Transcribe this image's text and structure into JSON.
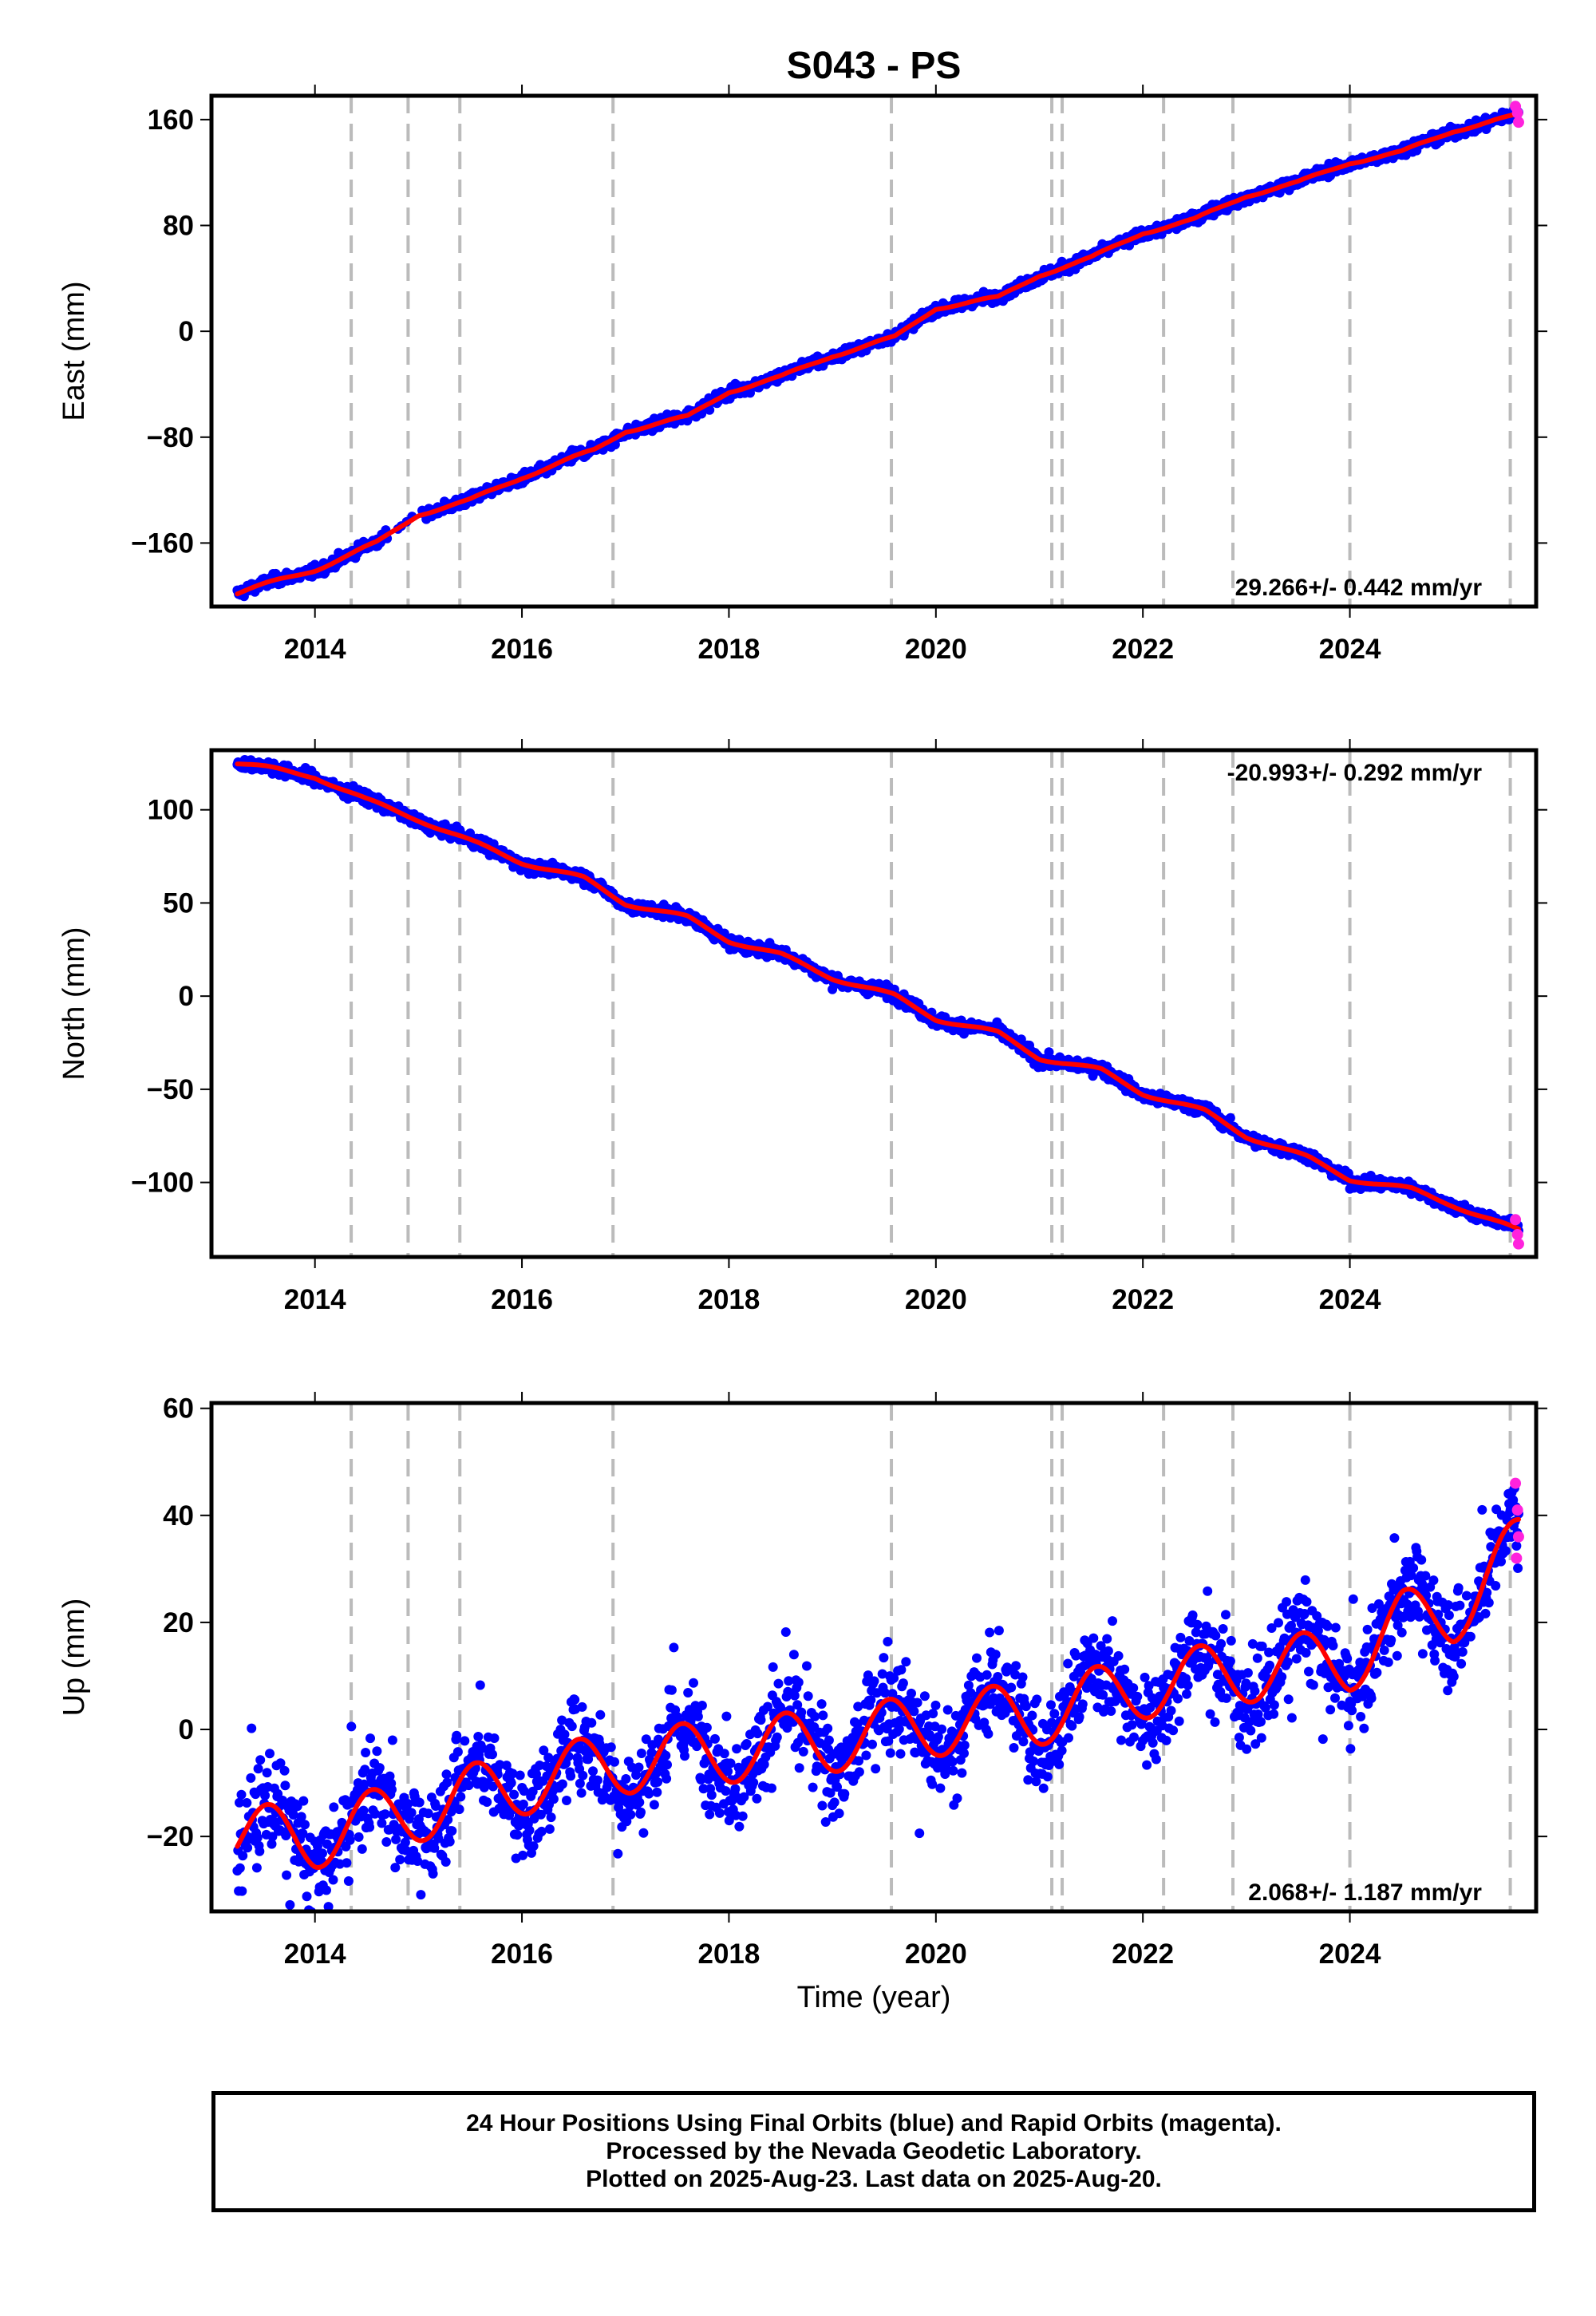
{
  "title": "S043 - PS",
  "xlabel": "Time (year)",
  "footer": {
    "line1": "24 Hour Positions Using Final Orbits (blue) and Rapid Orbits (magenta).",
    "line2": "Processed by the Nevada Geodetic Laboratory.",
    "line3": "Plotted on 2025-Aug-23. Last data on 2025-Aug-20."
  },
  "colors": {
    "final": "#0000ff",
    "rapid": "#ff22dd",
    "model": "#ff0000",
    "steps": "#bbbbbb"
  },
  "chart_data": [
    {
      "type": "scatter",
      "ylabel": "East (mm)",
      "xlim": [
        2013.0,
        2025.8
      ],
      "ylim": [
        -208,
        178
      ],
      "yticks": [
        -160,
        -80,
        0,
        80,
        160
      ],
      "xticks": [
        2014,
        2016,
        2018,
        2020,
        2022,
        2024
      ],
      "grid": false,
      "rate_text": "29.266+/- 0.442 mm/yr",
      "rate_placement": "bottom-right",
      "step_epochs": [
        2014.35,
        2014.9,
        2015.4,
        2016.88,
        2019.57,
        2021.12,
        2021.22,
        2022.2,
        2022.87,
        2024.0,
        2025.55
      ],
      "start": 2013.25,
      "end": 2025.63,
      "trend": [
        [
          2013.25,
          -198
        ],
        [
          2014.0,
          -180
        ],
        [
          2014.6,
          -160
        ],
        [
          2015.0,
          -138
        ],
        [
          2015.5,
          -128
        ],
        [
          2016.0,
          -110
        ],
        [
          2016.7,
          -90
        ],
        [
          2017.0,
          -75
        ],
        [
          2017.6,
          -65
        ],
        [
          2018.0,
          -45
        ],
        [
          2018.5,
          -35
        ],
        [
          2019.0,
          -18
        ],
        [
          2019.6,
          -5
        ],
        [
          2020.0,
          18
        ],
        [
          2020.6,
          25
        ],
        [
          2021.0,
          43
        ],
        [
          2021.5,
          55
        ],
        [
          2022.0,
          75
        ],
        [
          2022.5,
          84
        ],
        [
          2023.0,
          103
        ],
        [
          2023.5,
          112
        ],
        [
          2024.0,
          128
        ],
        [
          2024.5,
          135
        ],
        [
          2025.0,
          152
        ],
        [
          2025.63,
          163
        ]
      ],
      "noise": 3.5,
      "model_seasonal": 1.5,
      "rapid_points": [
        [
          2025.6,
          170
        ],
        [
          2025.62,
          165
        ],
        [
          2025.63,
          158
        ]
      ]
    },
    {
      "type": "scatter",
      "ylabel": "North (mm)",
      "xlim": [
        2013.0,
        2025.8
      ],
      "ylim": [
        -140,
        132
      ],
      "yticks": [
        -100,
        -50,
        0,
        50,
        100
      ],
      "xticks": [
        2014,
        2016,
        2018,
        2020,
        2022,
        2024
      ],
      "grid": false,
      "rate_text": "-20.993+/- 0.292 mm/yr",
      "rate_placement": "top-right",
      "step_epochs": [
        2014.35,
        2014.9,
        2015.4,
        2016.88,
        2019.57,
        2021.12,
        2021.22,
        2022.2,
        2022.87,
        2024.0,
        2025.55
      ],
      "start": 2013.25,
      "end": 2025.63,
      "trend": [
        [
          2013.25,
          125
        ],
        [
          2014.0,
          118
        ],
        [
          2014.5,
          105
        ],
        [
          2015.0,
          95
        ],
        [
          2015.5,
          83
        ],
        [
          2016.0,
          72
        ],
        [
          2016.6,
          63
        ],
        [
          2017.0,
          50
        ],
        [
          2017.6,
          42
        ],
        [
          2018.0,
          30
        ],
        [
          2018.5,
          22
        ],
        [
          2019.0,
          10
        ],
        [
          2019.6,
          0
        ],
        [
          2020.0,
          -12
        ],
        [
          2020.6,
          -20
        ],
        [
          2021.0,
          -33
        ],
        [
          2021.6,
          -40
        ],
        [
          2022.0,
          -52
        ],
        [
          2022.6,
          -62
        ],
        [
          2023.0,
          -75
        ],
        [
          2023.6,
          -87
        ],
        [
          2024.0,
          -98
        ],
        [
          2024.6,
          -104
        ],
        [
          2025.0,
          -112
        ],
        [
          2025.63,
          -126
        ]
      ],
      "noise": 2.8,
      "model_seasonal": 1.2,
      "rapid_points": [
        [
          2025.6,
          -120
        ],
        [
          2025.62,
          -128
        ],
        [
          2025.63,
          -133
        ]
      ]
    },
    {
      "type": "scatter",
      "ylabel": "Up (mm)",
      "xlim": [
        2013.0,
        2025.8
      ],
      "ylim": [
        -34,
        61
      ],
      "yticks": [
        -20,
        0,
        20,
        40,
        60
      ],
      "xticks": [
        2014,
        2016,
        2018,
        2020,
        2022,
        2024
      ],
      "grid": false,
      "rate_text": "2.068+/- 1.187 mm/yr",
      "rate_placement": "bottom-right",
      "step_epochs": [
        2014.35,
        2014.9,
        2015.4,
        2016.88,
        2019.57,
        2021.12,
        2021.22,
        2022.2,
        2022.87,
        2024.0,
        2025.55
      ],
      "start": 2013.25,
      "end": 2025.63,
      "trend": [
        [
          2013.25,
          -20
        ],
        [
          2014.0,
          -20
        ],
        [
          2015.0,
          -15
        ],
        [
          2016.0,
          -10
        ],
        [
          2017.0,
          -6
        ],
        [
          2018.0,
          -4
        ],
        [
          2019.0,
          -2
        ],
        [
          2020.0,
          1
        ],
        [
          2021.0,
          3
        ],
        [
          2022.0,
          8
        ],
        [
          2023.0,
          11
        ],
        [
          2024.0,
          13
        ],
        [
          2024.5,
          20
        ],
        [
          2025.0,
          22
        ],
        [
          2025.63,
          34
        ]
      ],
      "noise": 7.0,
      "model_seasonal": 6.0,
      "rapid_points": [
        [
          2025.6,
          46
        ],
        [
          2025.62,
          41
        ],
        [
          2025.63,
          36
        ],
        [
          2025.61,
          32
        ]
      ]
    }
  ]
}
